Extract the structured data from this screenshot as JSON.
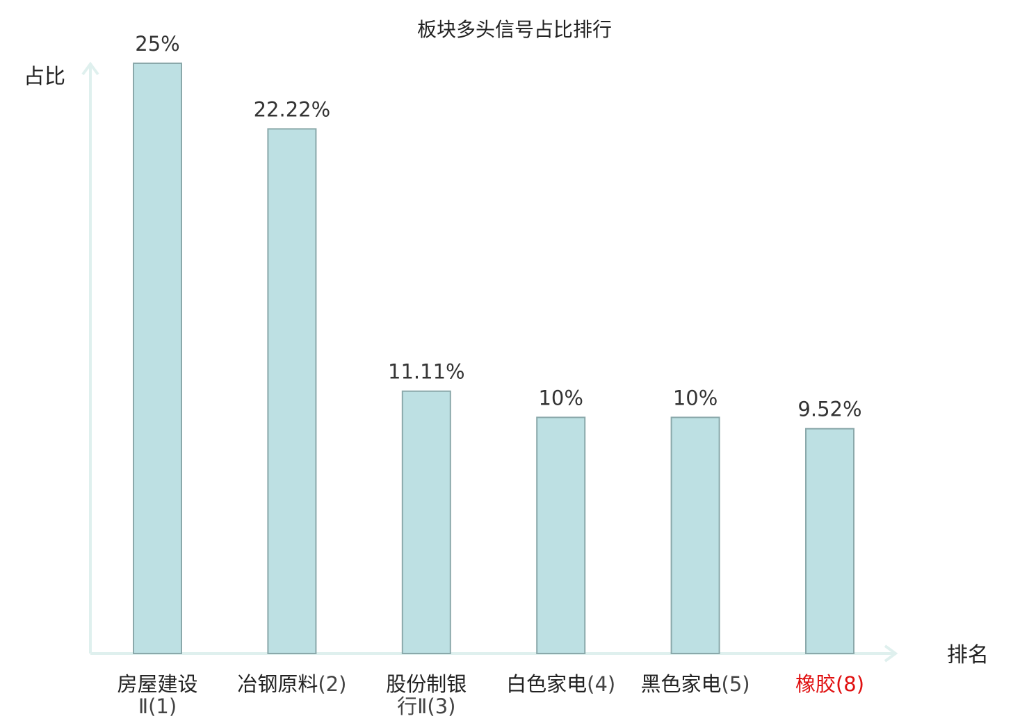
{
  "chart_data": {
    "type": "bar",
    "title": "板块多头信号占比排行",
    "ylabel": "占比",
    "xlabel": "排名",
    "ylim": [
      0,
      25
    ],
    "grid": false,
    "legend": "none",
    "categories": [
      {
        "lines": [
          {
            "text": "房屋建设",
            "color": "#222222"
          },
          {
            "text": "Ⅱ(1)",
            "color": "#444444"
          }
        ],
        "highlight": false
      },
      {
        "lines": [
          {
            "text": "冶钢原料",
            "color": "#222222"
          },
          {
            "text": "(2)",
            "color": "#444444"
          }
        ],
        "inline": true,
        "highlight": false
      },
      {
        "lines": [
          {
            "text": "股份制银",
            "color": "#222222"
          },
          {
            "text": "行Ⅱ(3)",
            "color": "#444444"
          }
        ],
        "highlight": false
      },
      {
        "lines": [
          {
            "text": "白色家电",
            "color": "#222222"
          },
          {
            "text": "(4)",
            "color": "#444444"
          }
        ],
        "inline": true,
        "highlight": false
      },
      {
        "lines": [
          {
            "text": "黑色家电",
            "color": "#222222"
          },
          {
            "text": "(5)",
            "color": "#444444"
          }
        ],
        "inline": true,
        "highlight": false
      },
      {
        "lines": [
          {
            "text": "橡胶",
            "color": "#e01010"
          },
          {
            "text": "(8)",
            "color": "#e01010"
          }
        ],
        "inline": true,
        "highlight": true
      }
    ],
    "values": [
      25,
      22.22,
      11.11,
      10,
      10,
      9.52
    ],
    "value_labels": [
      "25%",
      "22.22%",
      "11.11%",
      "10%",
      "10%",
      "9.52%"
    ],
    "colors": {
      "bar_fill": "#bde0e3",
      "bar_stroke": "#8aa8aa",
      "axis": "#dff0ee",
      "text": "#333333",
      "highlight": "#e01010"
    }
  }
}
